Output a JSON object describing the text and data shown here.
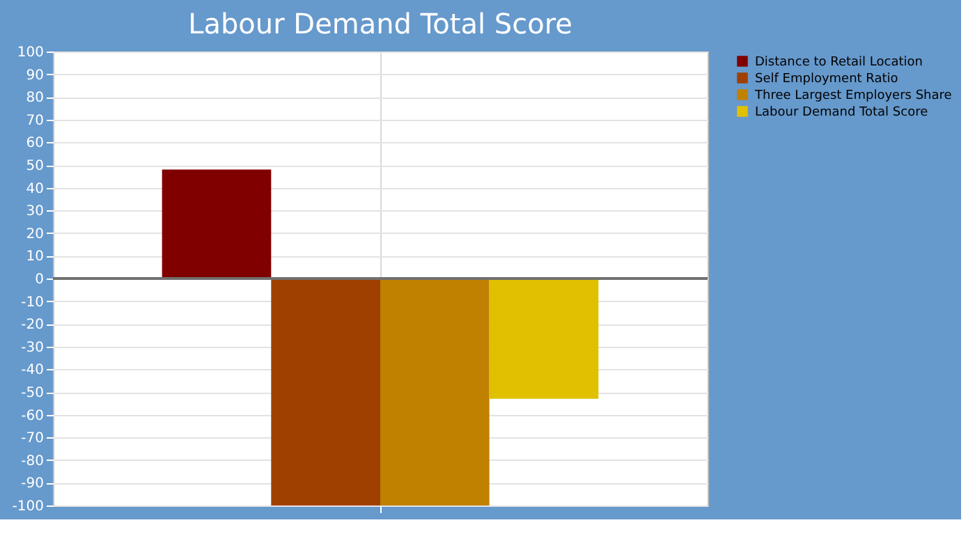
{
  "chart_data": {
    "type": "bar",
    "title": "Labour Demand Total Score",
    "categories": [
      null
    ],
    "series": [
      {
        "name": "Distance to Retail Location",
        "color": "#800000",
        "values": [
          48
        ]
      },
      {
        "name": "Self Employment Ratio",
        "color": "#a04000",
        "values": [
          -100
        ]
      },
      {
        "name": "Three Largest Employers Share",
        "color": "#c08000",
        "values": [
          -100
        ]
      },
      {
        "name": "Labour Demand Total Score",
        "color": "#e0c000",
        "values": [
          -53
        ]
      }
    ],
    "ylim": [
      -100,
      100
    ],
    "yticks": [
      -100,
      -90,
      -80,
      -70,
      -60,
      -50,
      -40,
      -30,
      -20,
      -10,
      0,
      10,
      20,
      30,
      40,
      50,
      60,
      70,
      80,
      90,
      100
    ],
    "ref_lines": [
      {
        "axis": "y",
        "value": 0,
        "color": "#707070"
      }
    ],
    "grid": true,
    "legend": "top right",
    "tick_labels": "y"
  }
}
